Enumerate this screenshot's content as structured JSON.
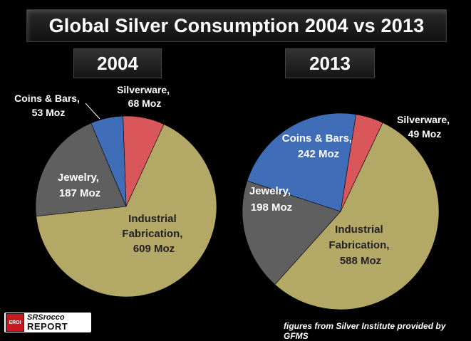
{
  "title": "Global Silver Consumption 2004 vs 2013",
  "source": "figures from Silver Institute provided by GFMS",
  "logo": {
    "badge": "EROI",
    "line1": "SRSrocco",
    "line2": "REPORT"
  },
  "colors": {
    "Industrial Fabrication": "#b4a866",
    "Jewelry": "#5f5f5f",
    "Coins & Bars": "#3f6db8",
    "Silverware": "#d9565b"
  },
  "chart_data": [
    {
      "type": "pie",
      "title": "2004",
      "slices": [
        {
          "label": "Silverware",
          "value": 68,
          "unit": "Moz"
        },
        {
          "label": "Industrial Fabrication",
          "value": 609,
          "unit": "Moz"
        },
        {
          "label": "Jewelry",
          "value": 187,
          "unit": "Moz"
        },
        {
          "label": "Coins & Bars",
          "value": 53,
          "unit": "Moz"
        }
      ]
    },
    {
      "type": "pie",
      "title": "2013",
      "slices": [
        {
          "label": "Silverware",
          "value": 49,
          "unit": "Moz"
        },
        {
          "label": "Industrial Fabrication",
          "value": 588,
          "unit": "Moz"
        },
        {
          "label": "Jewelry",
          "value": 198,
          "unit": "Moz"
        },
        {
          "label": "Coins & Bars",
          "value": 242,
          "unit": "Moz"
        }
      ]
    }
  ],
  "labels": [
    [
      {
        "line1": "Silverware,",
        "line2": "68 Moz"
      },
      {
        "line1": "Industrial",
        "line2": "Fabrication,",
        "line3": "609 Moz"
      },
      {
        "line1": "Jewelry,",
        "line2": "187 Moz"
      },
      {
        "line1": "Coins & Bars,",
        "line2": "53 Moz"
      }
    ],
    [
      {
        "line1": "Silverware,",
        "line2": "49 Moz"
      },
      {
        "line1": "Industrial",
        "line2": "Fabrication,",
        "line3": "588 Moz"
      },
      {
        "line1": "Jewelry,",
        "line2": "198 Moz"
      },
      {
        "line1": "Coins & Bars,",
        "line2": "242 Moz"
      }
    ]
  ]
}
